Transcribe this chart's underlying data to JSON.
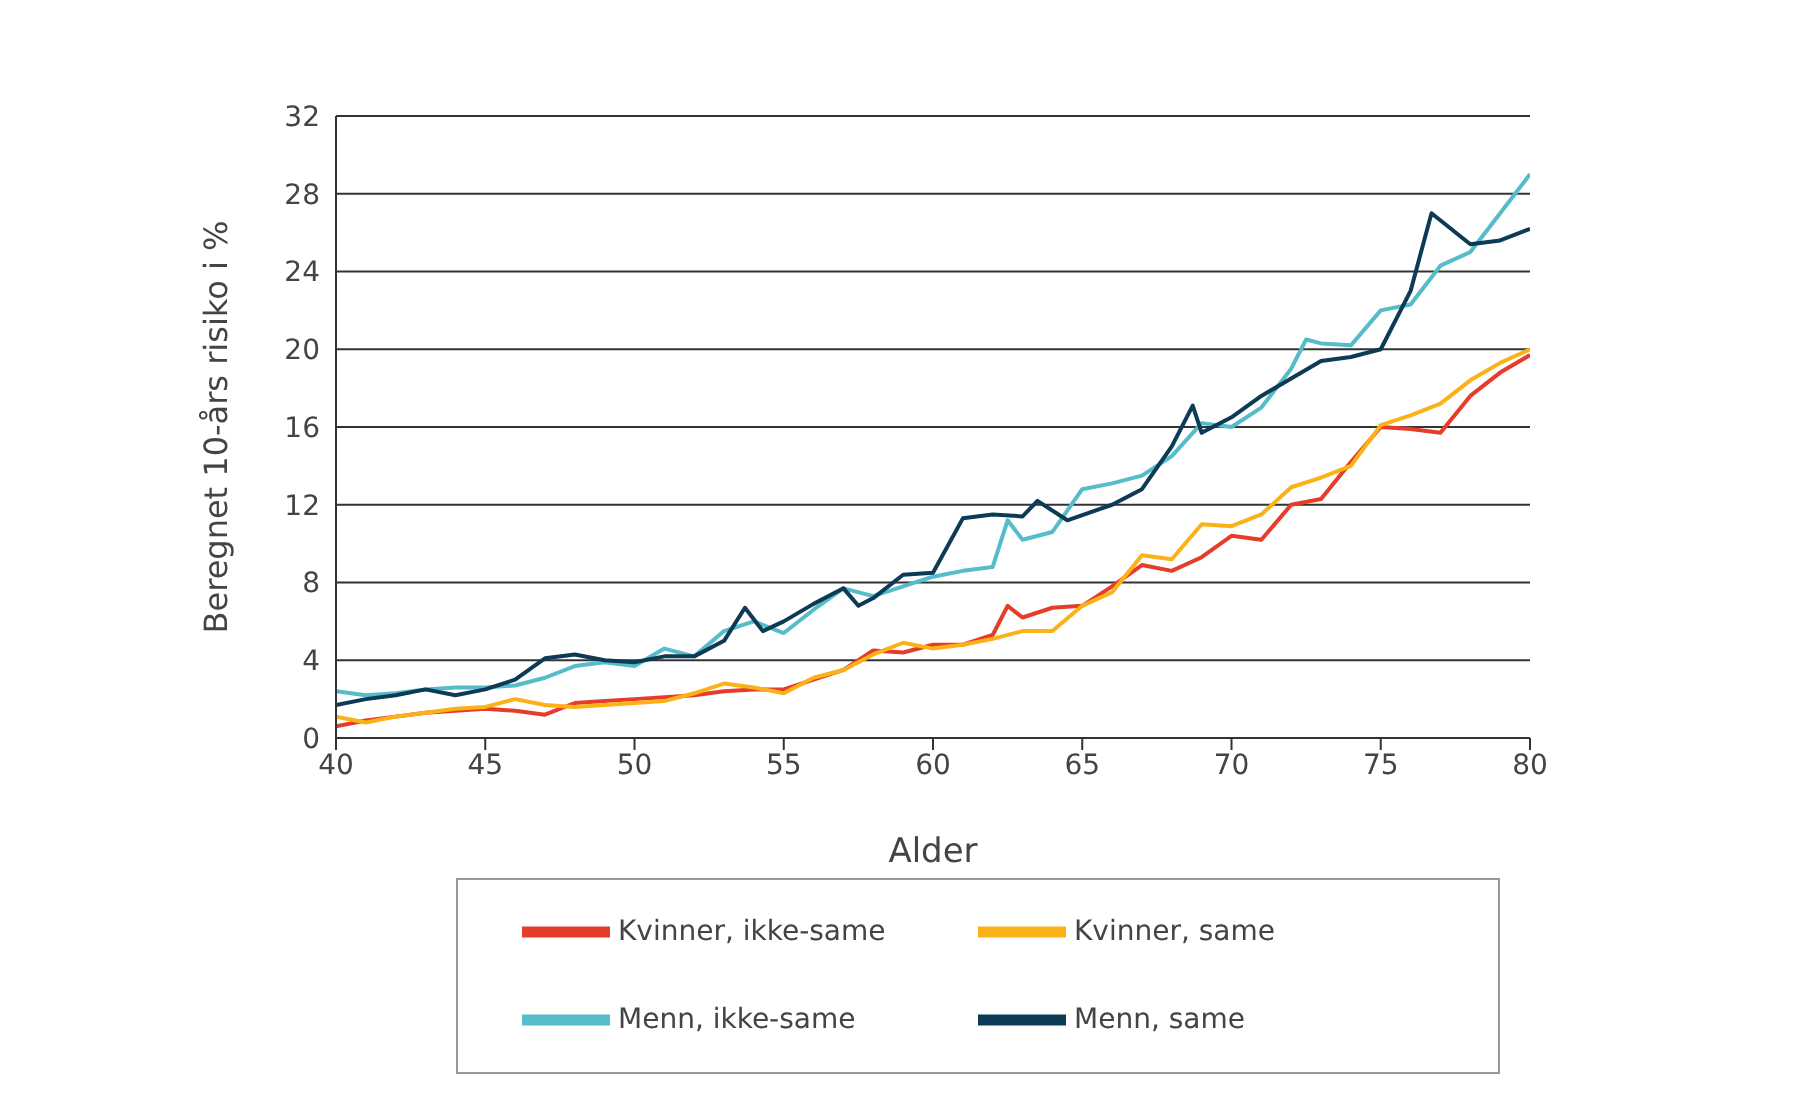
{
  "chart_data": {
    "type": "line",
    "xlabel": "Alder",
    "ylabel": "Beregnet 10-års risiko i %",
    "xlim": [
      40,
      80
    ],
    "xticks": [
      40,
      45,
      50,
      55,
      60,
      65,
      70,
      75,
      80
    ],
    "ylim": [
      0,
      32
    ],
    "yticks": [
      0,
      4,
      8,
      12,
      16,
      20,
      24,
      28,
      32
    ],
    "grid": "y",
    "legend": "bottom",
    "marker": "none",
    "line_style": "solid",
    "series": [
      {
        "name": "Kvinner, ikke-same",
        "color": "#e63c2a",
        "x": [
          40,
          41,
          42,
          43,
          44,
          45,
          46,
          47,
          48,
          49,
          50,
          51,
          52,
          53,
          54,
          55,
          56,
          57,
          58,
          59,
          60,
          61,
          62,
          62.5,
          63,
          64,
          65,
          66,
          67,
          68,
          69,
          70,
          71,
          72,
          73,
          74,
          75,
          76,
          77,
          78,
          79,
          80
        ],
        "values": [
          0.6,
          0.9,
          1.1,
          1.3,
          1.4,
          1.5,
          1.4,
          1.2,
          1.8,
          1.9,
          2.0,
          2.1,
          2.2,
          2.4,
          2.5,
          2.5,
          3.0,
          3.5,
          4.5,
          4.4,
          4.8,
          4.8,
          5.3,
          6.8,
          6.2,
          6.7,
          6.8,
          7.8,
          8.9,
          8.6,
          9.3,
          10.4,
          10.2,
          12.0,
          12.3,
          14.2,
          16.0,
          15.9,
          15.7,
          17.6,
          18.8,
          19.7
        ]
      },
      {
        "name": "Kvinner, same",
        "color": "#fbb216",
        "x": [
          40,
          41,
          42,
          43,
          44,
          45,
          46,
          47,
          48,
          49,
          50,
          51,
          52,
          53,
          54,
          55,
          56,
          57,
          58,
          59,
          60,
          61,
          62,
          63,
          64,
          65,
          66,
          67,
          68,
          69,
          70,
          71,
          72,
          73,
          74,
          75,
          76,
          77,
          78,
          79,
          80
        ],
        "values": [
          1.1,
          0.8,
          1.1,
          1.3,
          1.5,
          1.6,
          2.0,
          1.7,
          1.6,
          1.7,
          1.8,
          1.9,
          2.3,
          2.8,
          2.6,
          2.3,
          3.1,
          3.5,
          4.3,
          4.9,
          4.6,
          4.8,
          5.1,
          5.5,
          5.5,
          6.8,
          7.5,
          9.4,
          9.2,
          11.0,
          10.9,
          11.5,
          12.9,
          13.4,
          14.0,
          16.1,
          16.6,
          17.2,
          18.4,
          19.3,
          20.0
        ]
      },
      {
        "name": "Menn, ikke-same",
        "color": "#55bcc9",
        "x": [
          40,
          41,
          42,
          43,
          44,
          45,
          46,
          47,
          48,
          49,
          50,
          51,
          52,
          53,
          54,
          55,
          56,
          57,
          58,
          59,
          60,
          61,
          62,
          62.5,
          63,
          64,
          65,
          66,
          67,
          68,
          69,
          70,
          71,
          72,
          72.5,
          73,
          74,
          75,
          76,
          77,
          78,
          79,
          80
        ],
        "values": [
          2.4,
          2.2,
          2.3,
          2.5,
          2.6,
          2.6,
          2.7,
          3.1,
          3.7,
          3.9,
          3.7,
          4.6,
          4.2,
          5.5,
          6.0,
          5.4,
          6.6,
          7.7,
          7.3,
          7.8,
          8.3,
          8.6,
          8.8,
          11.2,
          10.2,
          10.6,
          12.8,
          13.1,
          13.5,
          14.5,
          16.2,
          16.0,
          17.0,
          19.0,
          20.5,
          20.3,
          20.2,
          22.0,
          22.3,
          24.3,
          25.0,
          27.0,
          29.0
        ]
      },
      {
        "name": "Menn, same",
        "color": "#0d3a55",
        "x": [
          40,
          41,
          42,
          43,
          44,
          45,
          46,
          47,
          48,
          49,
          50,
          51,
          52,
          53,
          53.7,
          54.3,
          55,
          56,
          57,
          57.5,
          58,
          59,
          60,
          61,
          62,
          63,
          63.5,
          64.5,
          66,
          67,
          68,
          68.7,
          69,
          70,
          71,
          72,
          73,
          74,
          75,
          76,
          76.7,
          78,
          79,
          80
        ],
        "values": [
          1.7,
          2.0,
          2.2,
          2.5,
          2.2,
          2.5,
          3.0,
          4.1,
          4.3,
          4.0,
          3.9,
          4.2,
          4.2,
          5.0,
          6.7,
          5.5,
          6.0,
          6.9,
          7.7,
          6.8,
          7.2,
          8.4,
          8.5,
          11.3,
          11.5,
          11.4,
          12.2,
          11.2,
          12.0,
          12.8,
          15.0,
          17.1,
          15.7,
          16.5,
          17.6,
          18.5,
          19.4,
          19.6,
          20.0,
          23.0,
          27.0,
          25.4,
          25.6,
          26.2
        ]
      }
    ]
  }
}
